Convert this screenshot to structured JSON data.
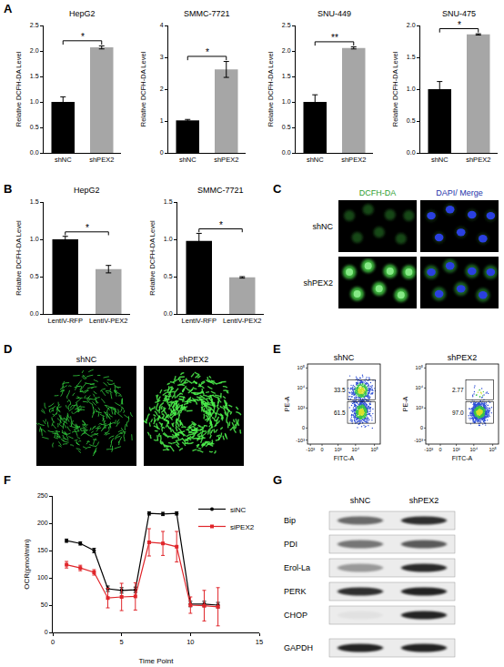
{
  "panel_labels": [
    "A",
    "B",
    "C",
    "D",
    "E",
    "F",
    "G"
  ],
  "chart_data": [
    {
      "type": "bar",
      "title": "HepG2",
      "ylabel": "Relative DCFH-DA Level",
      "categories": [
        "shNC",
        "shPEX2"
      ],
      "values": [
        1.0,
        2.07
      ],
      "errors": [
        0.1,
        0.03
      ],
      "colors": [
        "#000000",
        "#a6a6a6"
      ],
      "ylim": [
        0,
        2.5
      ],
      "yticks": [
        {
          "value": 0,
          "label": "0.0"
        },
        0.5,
        {
          "value": 1,
          "label": "1.0"
        },
        1.5,
        {
          "value": 2,
          "label": "2.0"
        },
        2.5
      ],
      "grid": false,
      "annotations": [
        "*"
      ]
    },
    {
      "type": "bar",
      "title": "SMMC-7721",
      "ylabel": "Relative DCFH-DA Level",
      "categories": [
        "shNC",
        "shPEX2"
      ],
      "values": [
        1.02,
        2.62
      ],
      "errors": [
        0.03,
        0.25
      ],
      "colors": [
        "#000000",
        "#a6a6a6"
      ],
      "ylim": [
        0,
        4
      ],
      "yticks": [
        0,
        1,
        2,
        3,
        4
      ],
      "grid": false,
      "annotations": [
        "*"
      ]
    },
    {
      "type": "bar",
      "title": "SNU-449",
      "ylabel": "Relative DCFH-DA Level",
      "categories": [
        "shNC",
        "shPEX2"
      ],
      "values": [
        1.0,
        2.06
      ],
      "errors": [
        0.14,
        0.02
      ],
      "colors": [
        "#000000",
        "#a6a6a6"
      ],
      "ylim": [
        0,
        2.5
      ],
      "yticks": [
        {
          "value": 0,
          "label": "0.0"
        },
        0.5,
        {
          "value": 1,
          "label": "1.0"
        },
        1.5,
        {
          "value": 2,
          "label": "2.0"
        },
        2.5
      ],
      "grid": false,
      "annotations": [
        "**"
      ]
    },
    {
      "type": "bar",
      "title": "SNU-475",
      "ylabel": "Relative DCFH-DA Level",
      "categories": [
        "shNC",
        "shPEX2"
      ],
      "values": [
        1.0,
        1.86
      ],
      "errors": [
        0.12,
        0.01
      ],
      "colors": [
        "#000000",
        "#a6a6a6"
      ],
      "ylim": [
        0,
        2
      ],
      "yticks": [
        {
          "value": 0,
          "label": "0.0"
        },
        0.5,
        {
          "value": 1,
          "label": "1.0"
        },
        1.5,
        {
          "value": 2,
          "label": "2.0"
        }
      ],
      "grid": false,
      "annotations": [
        "*"
      ]
    },
    {
      "type": "bar",
      "title": "HepG2",
      "ylabel": "Relative DCFH-DA Level",
      "categories": [
        "LentiV-RFP",
        "LentiV-PEX2"
      ],
      "values": [
        1.0,
        0.6
      ],
      "errors": [
        0.04,
        0.05
      ],
      "colors": [
        "#000000",
        "#a6a6a6"
      ],
      "ylim": [
        0,
        1.5
      ],
      "yticks": [
        {
          "value": 0,
          "label": "0.0"
        },
        0.5,
        {
          "value": 1,
          "label": "1.0"
        },
        1.5
      ],
      "grid": false,
      "annotations": [
        "*"
      ]
    },
    {
      "type": "bar",
      "title": "SMMC-7721",
      "ylabel": "Relative DCFH-DA Level",
      "categories": [
        "LentiV-RFP",
        "LentiV-PEX2"
      ],
      "values": [
        0.98,
        0.49
      ],
      "errors": [
        0.1,
        0.01
      ],
      "colors": [
        "#000000",
        "#a6a6a6"
      ],
      "ylim": [
        0,
        1.5
      ],
      "yticks": [
        {
          "value": 0,
          "label": "0.0"
        },
        0.5,
        {
          "value": 1,
          "label": "1.0"
        },
        1.5
      ],
      "grid": false,
      "annotations": [
        "*"
      ]
    },
    {
      "type": "line",
      "xlabel": "Time Point",
      "ylabel": "OCR(pmol/min)",
      "x": [
        1,
        2,
        3,
        4,
        5,
        6,
        7,
        8,
        9,
        10,
        11,
        12
      ],
      "series": [
        {
          "name": "siNC",
          "color": "#000000",
          "marker": "circle",
          "values": [
            168,
            163,
            150,
            80,
            77,
            78,
            218,
            217,
            218,
            52,
            52,
            50
          ],
          "errors": [
            3,
            3,
            4,
            5,
            5,
            5,
            3,
            3,
            3,
            5,
            5,
            5
          ]
        },
        {
          "name": "siPEX2",
          "color": "#e0262b",
          "marker": "square",
          "values": [
            124,
            118,
            110,
            63,
            65,
            66,
            165,
            163,
            157,
            50,
            49,
            47
          ],
          "errors": [
            6,
            5,
            5,
            18,
            25,
            25,
            25,
            22,
            28,
            15,
            28,
            35
          ]
        }
      ],
      "xlim": [
        0,
        15
      ],
      "xticks": [
        0,
        5,
        10,
        15
      ],
      "ylim": [
        0,
        250
      ],
      "yticks": [
        0,
        50,
        100,
        150,
        200,
        250
      ],
      "grid": false,
      "legend": "upper right"
    }
  ],
  "C": {
    "columns": [
      "DCFH-DA",
      "DAPI/ Merge"
    ],
    "rows": [
      "shNC",
      "shPEX2"
    ]
  },
  "D": {
    "columns": [
      "shNC",
      "shPEX2"
    ]
  },
  "E": {
    "panels": [
      {
        "title": "shNC",
        "gates": [
          "33.5",
          "61.5"
        ]
      },
      {
        "title": "shPEX2",
        "gates": [
          "2.77",
          "97.0"
        ]
      }
    ],
    "xlabel": "FITC-A",
    "ylabel": "PE-A",
    "yticks": [
      "10⁵",
      "10⁴",
      "10³",
      "0",
      "-10³"
    ],
    "xticks": [
      "-10³",
      "0",
      "10³",
      "10⁴",
      "10⁵"
    ]
  },
  "G": {
    "columns": [
      "shNC",
      "shPEX2"
    ],
    "rows": [
      "Bip",
      "PDI",
      "Erol-La",
      "PERK",
      "CHOP",
      "GAPDH"
    ]
  }
}
